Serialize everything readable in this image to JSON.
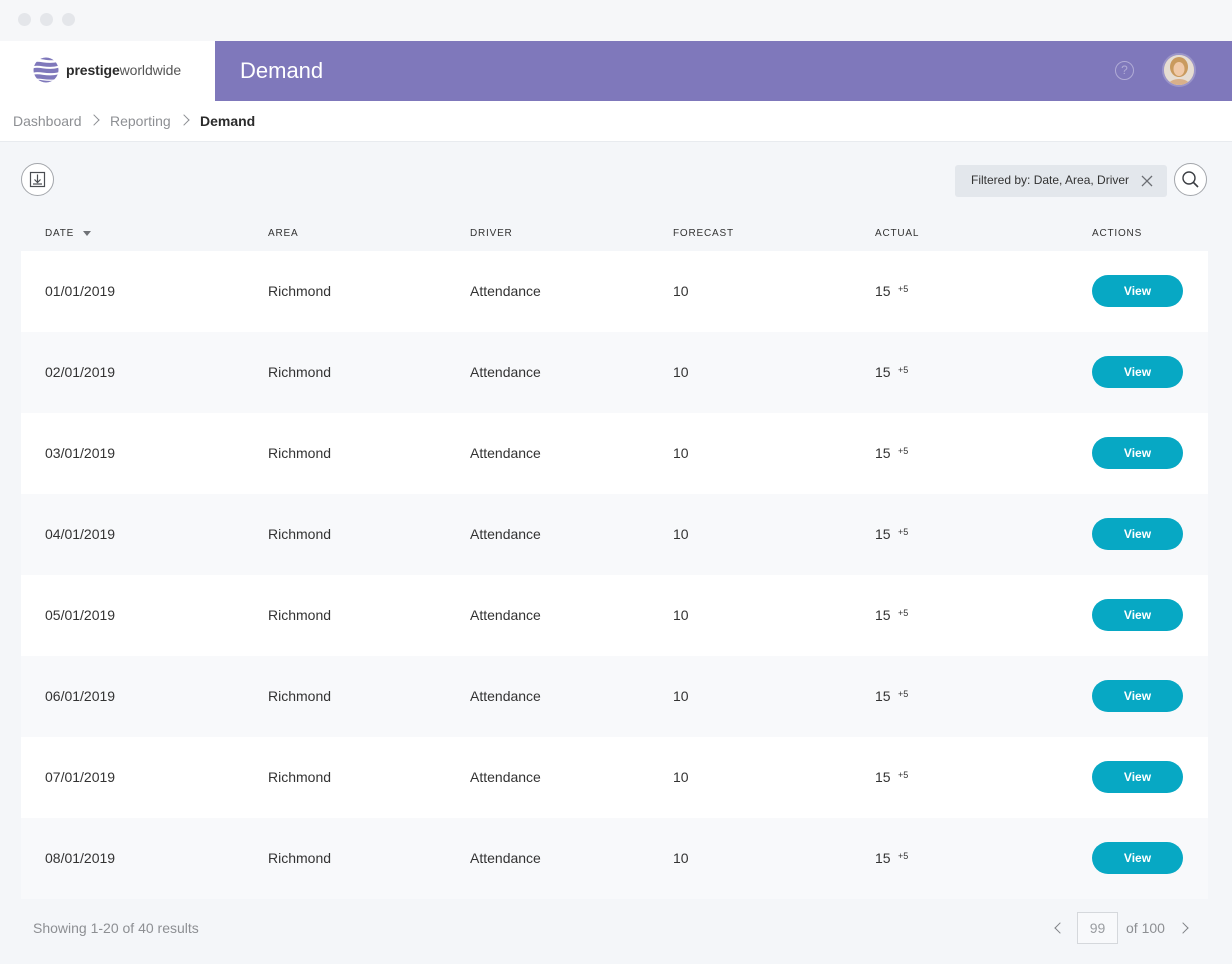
{
  "window": {
    "controls": [
      "close",
      "minimize",
      "maximize"
    ]
  },
  "brand": {
    "name_bold": "prestige",
    "name_light": "worldwide",
    "logo_icon": "globe-stripes-icon"
  },
  "header": {
    "title": "Demand",
    "help_icon": "question-circle-icon",
    "avatar_icon": "user-avatar",
    "accent": "#7f78bb"
  },
  "breadcrumb": [
    "Dashboard",
    "Reporting",
    "Demand"
  ],
  "toolbar": {
    "download_icon": "download-icon",
    "filter_label": "Filtered by: Date, Area, Driver",
    "filter_clear_icon": "close-icon",
    "search_icon": "search-icon"
  },
  "table": {
    "columns": [
      "DATE",
      "AREA",
      "DRIVER",
      "FORECAST",
      "ACTUAL",
      "ACTIONS"
    ],
    "sort_column": "DATE",
    "sort_direction": "descending",
    "rows": [
      {
        "date": "01/01/2019",
        "area": "Richmond",
        "driver": "Attendance",
        "forecast": "10",
        "actual": "15",
        "delta": "+5",
        "action": "View"
      },
      {
        "date": "02/01/2019",
        "area": "Richmond",
        "driver": "Attendance",
        "forecast": "10",
        "actual": "15",
        "delta": "+5",
        "action": "View"
      },
      {
        "date": "03/01/2019",
        "area": "Richmond",
        "driver": "Attendance",
        "forecast": "10",
        "actual": "15",
        "delta": "+5",
        "action": "View"
      },
      {
        "date": "04/01/2019",
        "area": "Richmond",
        "driver": "Attendance",
        "forecast": "10",
        "actual": "15",
        "delta": "+5",
        "action": "View"
      },
      {
        "date": "05/01/2019",
        "area": "Richmond",
        "driver": "Attendance",
        "forecast": "10",
        "actual": "15",
        "delta": "+5",
        "action": "View"
      },
      {
        "date": "06/01/2019",
        "area": "Richmond",
        "driver": "Attendance",
        "forecast": "10",
        "actual": "15",
        "delta": "+5",
        "action": "View"
      },
      {
        "date": "07/01/2019",
        "area": "Richmond",
        "driver": "Attendance",
        "forecast": "10",
        "actual": "15",
        "delta": "+5",
        "action": "View"
      },
      {
        "date": "08/01/2019",
        "area": "Richmond",
        "driver": "Attendance",
        "forecast": "10",
        "actual": "15",
        "delta": "+5",
        "action": "View"
      }
    ],
    "button_color": "#07a8c4"
  },
  "footer": {
    "results_text": "Showing 1-20 of 40 results",
    "page_value": "99",
    "page_total_text": "of 100",
    "prev_icon": "chevron-left-icon",
    "next_icon": "chevron-right-icon"
  }
}
